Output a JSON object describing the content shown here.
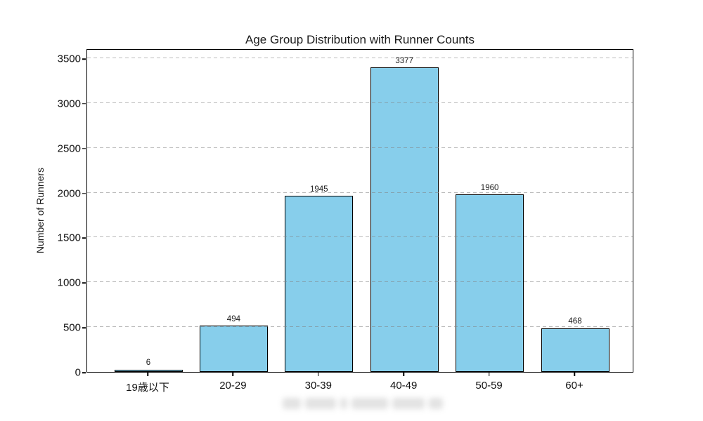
{
  "chart_data": {
    "type": "bar",
    "title": "Age Group Distribution with Runner Counts",
    "xlabel": "",
    "ylabel": "Number of Runners",
    "categories": [
      "19歳以下",
      "20-29",
      "30-39",
      "40-49",
      "50-59",
      "60+"
    ],
    "values": [
      6,
      494,
      1945,
      3377,
      1960,
      468
    ],
    "bar_value_labels": [
      "6",
      "494",
      "1945",
      "3377",
      "1960",
      "468"
    ],
    "y_ticks": [
      0,
      500,
      1000,
      1500,
      2000,
      2500,
      3000,
      3500
    ],
    "ylim": [
      0,
      3610
    ],
    "grid": "horizontal dashed gridlines",
    "legend": "none",
    "colors": {
      "bar_fill": "#87CEEB",
      "bar_edge": "#000000",
      "gridline": "#c9c9c9",
      "axis": "#000000",
      "text": "#1a1a1a",
      "background": "#ffffff"
    }
  }
}
